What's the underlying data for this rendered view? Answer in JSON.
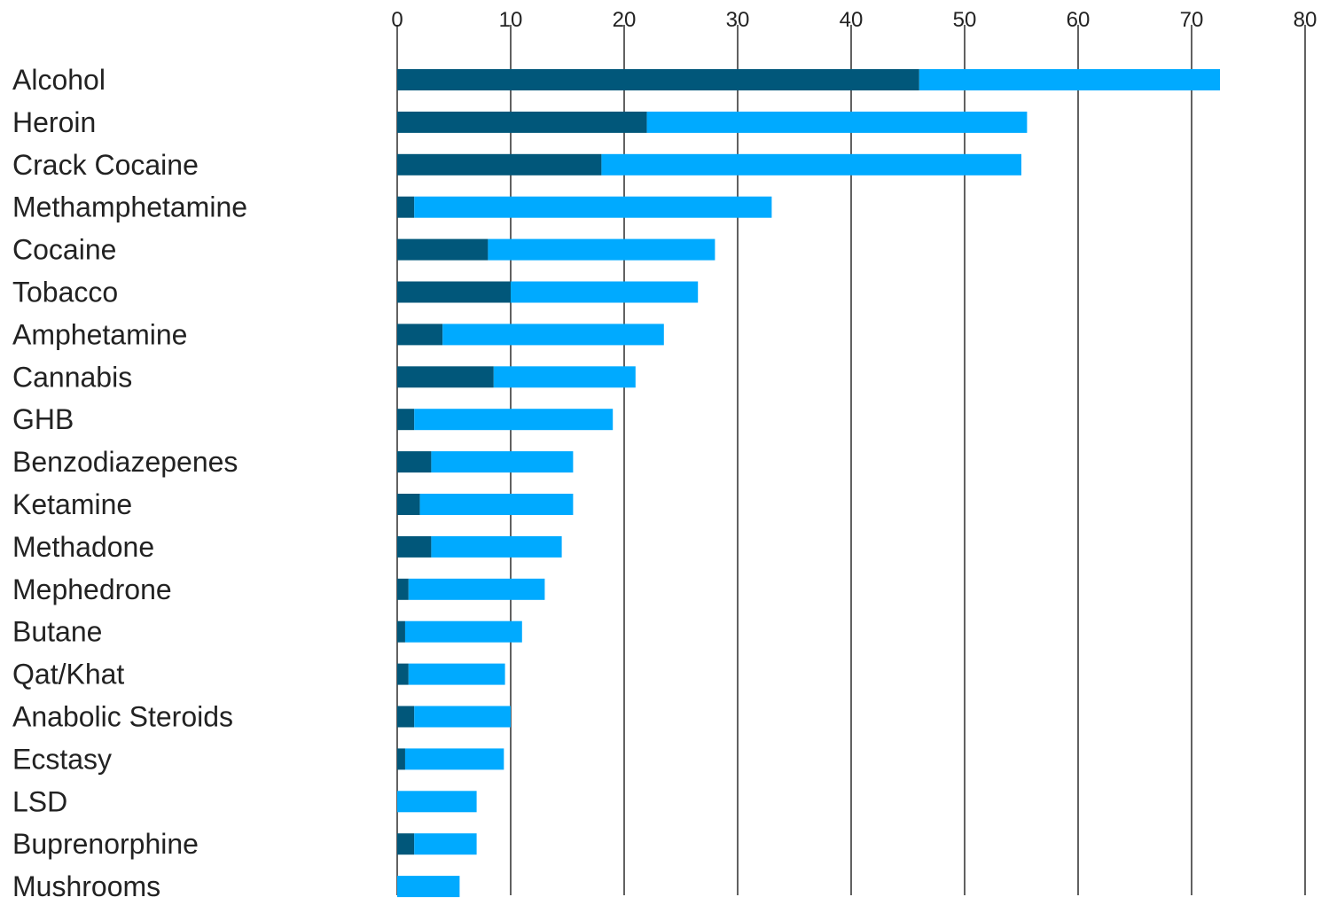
{
  "chart_data": {
    "type": "bar",
    "orientation": "horizontal",
    "stacked": true,
    "title": "",
    "xlabel": "",
    "ylabel": "",
    "xlim": [
      0,
      80
    ],
    "x_ticks": [
      0,
      10,
      20,
      30,
      40,
      50,
      60,
      70,
      80
    ],
    "grid": "vertical lines at each tick",
    "legend": "none",
    "categories": [
      "Alcohol",
      "Heroin",
      "Crack Cocaine",
      "Methamphetamine",
      "Cocaine",
      "Tobacco",
      "Amphetamine",
      "Cannabis",
      "GHB",
      "Benzodiazepenes",
      "Ketamine",
      "Methadone",
      "Mephedrone",
      "Butane",
      "Qat/Khat",
      "Anabolic Steroids",
      "Ecstasy",
      "LSD",
      "Buprenorphine",
      "Mushrooms"
    ],
    "series": [
      {
        "color": "#01577a",
        "values": [
          46,
          22,
          18,
          1.5,
          8,
          10,
          4,
          8.5,
          1.5,
          3,
          2,
          3,
          1,
          0.7,
          1,
          1.5,
          0.7,
          0,
          1.5,
          0
        ]
      },
      {
        "color": "#00aaff",
        "values": [
          26.5,
          33.5,
          37,
          31.5,
          20,
          16.5,
          19.5,
          12.5,
          17.5,
          12.5,
          13.5,
          11.5,
          12,
          10.3,
          8.5,
          8.5,
          8.7,
          7,
          5.5,
          5.5
        ]
      }
    ]
  }
}
